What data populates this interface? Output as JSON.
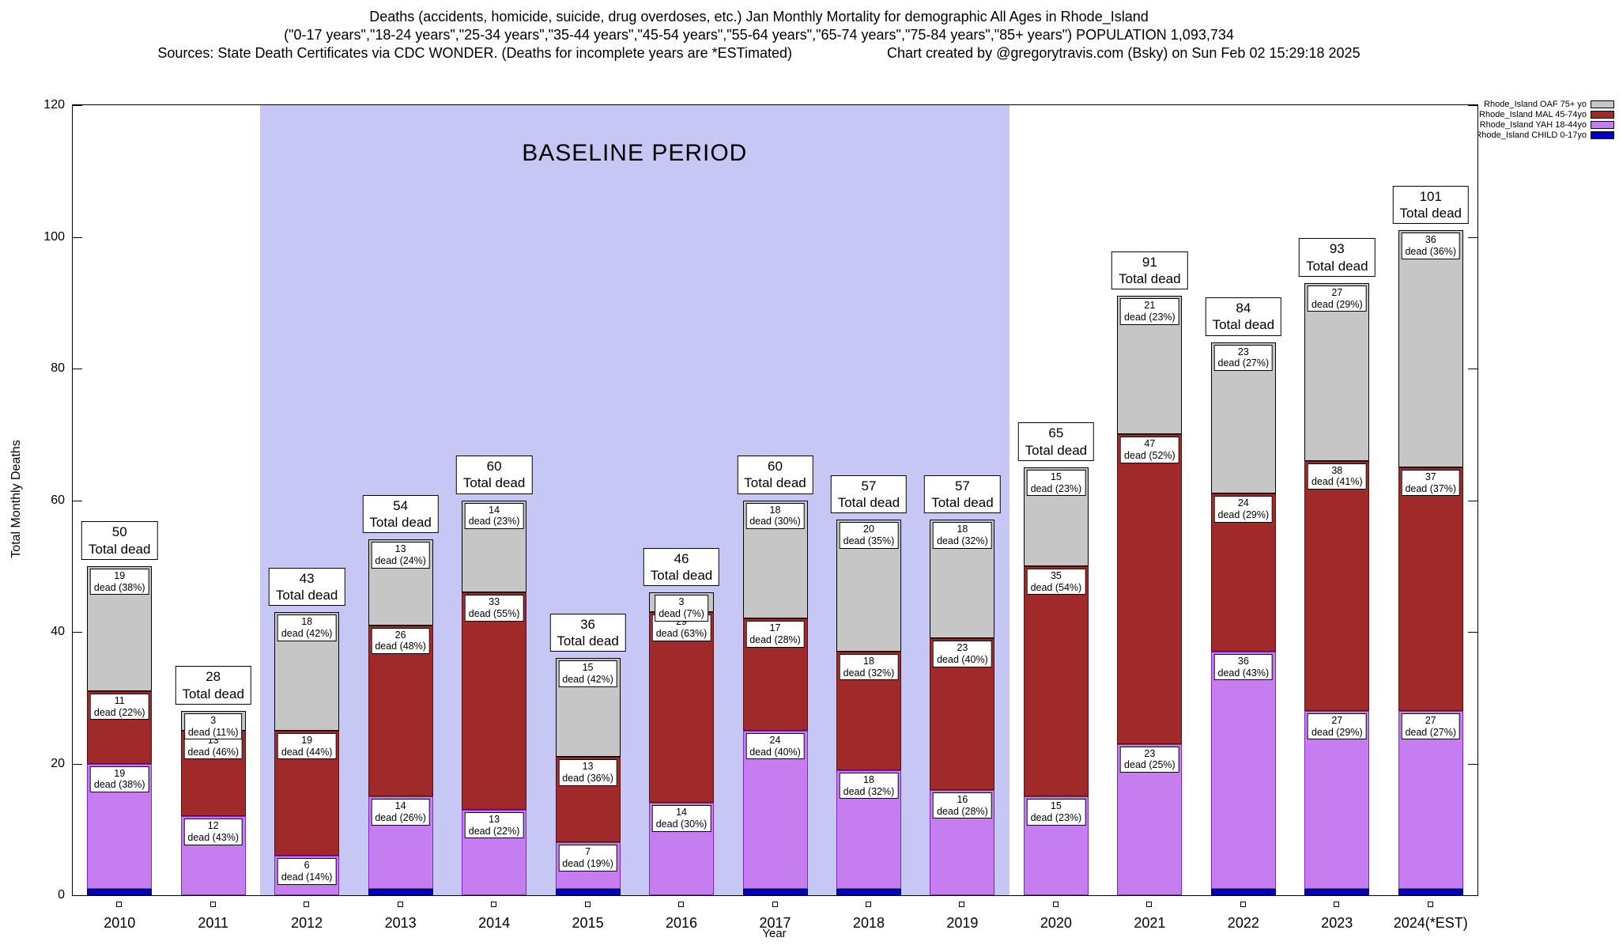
{
  "header": {
    "title_line1": "Deaths (accidents, homicide, suicide, drug overdoses, etc.) Jan Monthly Mortality for demographic All Ages in Rhode_Island",
    "title_line2": "(\"0-17 years\",\"18-24 years\",\"25-34 years\",\"35-44 years\",\"45-54 years\",\"55-64 years\",\"65-74 years\",\"75-84 years\",\"85+ years\") POPULATION 1,093,734",
    "sources": "Sources: State Death Certificates via CDC WONDER. (Deaths for incomplete years are *ESTimated)",
    "credit": "Chart created by @gregorytravis.com (Bsky) on Sun Feb 02 15:29:18 2025"
  },
  "chart_data": {
    "type": "bar",
    "stacked": true,
    "title": "Deaths (accidents, homicide, suicide, drug overdoses, etc.) Jan Monthly Mortality for demographic All Ages in Rhode_Island",
    "xlabel": "Year",
    "ylabel": "Total Monthly Deaths",
    "ylim": [
      0,
      120
    ],
    "yticks": [
      0,
      20,
      40,
      60,
      80,
      100,
      120
    ],
    "categories": [
      "2010",
      "2011",
      "2012",
      "2013",
      "2014",
      "2015",
      "2016",
      "2017",
      "2018",
      "2019",
      "2020",
      "2021",
      "2022",
      "2023",
      "2024(*EST)"
    ],
    "totals": [
      50,
      28,
      43,
      54,
      60,
      36,
      46,
      60,
      57,
      57,
      65,
      91,
      84,
      93,
      101
    ],
    "total_label": "Total dead",
    "label_word": "dead",
    "baseline_region": {
      "label": "BASELINE PERIOD",
      "from": "2012",
      "to": "2019",
      "color": "#c7c7f5"
    },
    "series": [
      {
        "name": "Rhode_Island CHILD 0-17yo",
        "key": "child",
        "color": "#0000c8",
        "border": "#000050",
        "values": [
          1,
          0,
          0,
          1,
          0,
          1,
          0,
          1,
          1,
          0,
          0,
          0,
          1,
          1,
          1
        ]
      },
      {
        "name": "Rhode_Island YAH 18-44yo",
        "key": "yah",
        "color": "#c67df0",
        "border": "#7d26cd",
        "values": [
          19,
          12,
          6,
          14,
          13,
          7,
          14,
          24,
          18,
          16,
          15,
          23,
          36,
          27,
          27
        ],
        "pct": [
          38,
          43,
          14,
          26,
          22,
          19,
          30,
          40,
          32,
          28,
          23,
          25,
          43,
          29,
          27
        ]
      },
      {
        "name": "Rhode_Island MAL 45-74yo",
        "key": "mal",
        "color": "#a02a2a",
        "border": "#5a0f0f",
        "values": [
          11,
          13,
          19,
          26,
          33,
          13,
          29,
          17,
          18,
          23,
          35,
          47,
          24,
          38,
          37
        ],
        "pct": [
          22,
          46,
          44,
          48,
          55,
          36,
          63,
          28,
          32,
          40,
          54,
          52,
          29,
          41,
          37
        ]
      },
      {
        "name": "Rhode_Island OAF 75+ yo",
        "key": "oaf",
        "color": "#c6c6c6",
        "border": "#000000",
        "values": [
          19,
          3,
          18,
          13,
          14,
          15,
          3,
          18,
          20,
          18,
          15,
          21,
          23,
          27,
          36
        ],
        "pct": [
          38,
          11,
          42,
          24,
          23,
          42,
          7,
          30,
          35,
          32,
          23,
          23,
          27,
          29,
          36
        ]
      }
    ],
    "legend": [
      {
        "label": "Rhode_Island OAF 75+ yo",
        "color": "#c6c6c6"
      },
      {
        "label": "Rhode_Island MAL 45-74yo",
        "color": "#a02a2a"
      },
      {
        "label": "Rhode_Island YAH 18-44yo",
        "color": "#c67df0"
      },
      {
        "label": "Rhode_Island CHILD 0-17yo",
        "color": "#0000c8"
      }
    ]
  }
}
